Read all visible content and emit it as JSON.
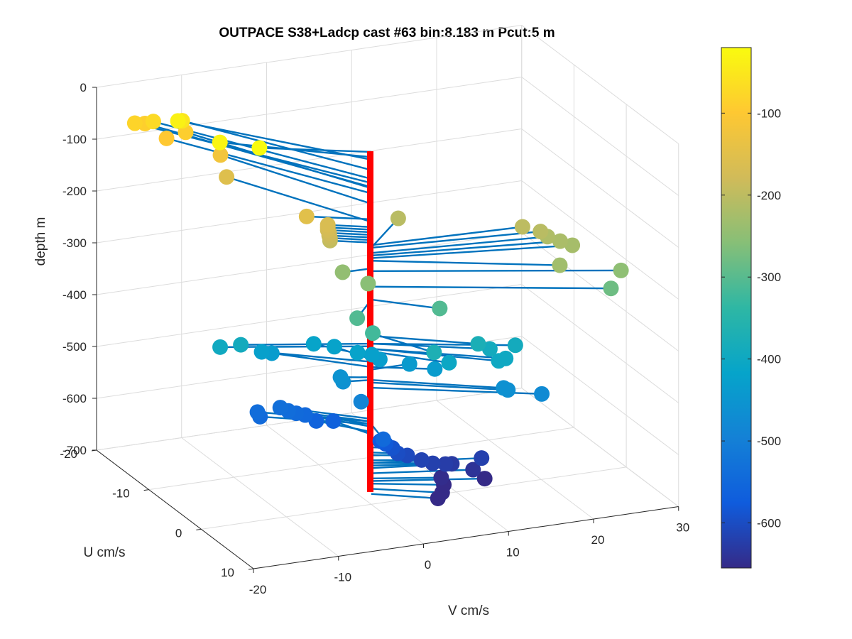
{
  "chart_data": {
    "type": "scatter",
    "subtype": "3d-stem-scatter",
    "title": "OUTPACE S38+Ladcp cast #63 bin:8.183 m  Pcut:5 m",
    "xlabel": "V cm/s",
    "ylabel": "U cm/s",
    "zlabel": "depth m",
    "xlim": [
      -20,
      30
    ],
    "ylim": [
      -20,
      10
    ],
    "zlim": [
      -700,
      0
    ],
    "x_ticks": [
      "-20",
      "-10",
      "0",
      "10",
      "20",
      "30"
    ],
    "y_ticks": [
      "-20",
      "-10",
      "0",
      "10"
    ],
    "z_ticks": [
      "0",
      "-100",
      "-200",
      "-300",
      "-400",
      "-500",
      "-600",
      "-700"
    ],
    "grid": true,
    "colormap": "parula",
    "colorbar": {
      "placement": "right",
      "range": [
        -655,
        -20
      ],
      "ticks": [
        "-100",
        "-200",
        "-300",
        "-400",
        "-500",
        "-600"
      ],
      "colors": [
        "#352a87",
        "#0f5cdd",
        "#1481d6",
        "#06a4ca",
        "#2eb7a4",
        "#87bf77",
        "#d1bb59",
        "#fec832",
        "#f9fb0e"
      ]
    },
    "stem_color": "#0072bd",
    "axis_line_color": "#ff0000",
    "points": [
      {
        "v": -10.5,
        "u": -4.3,
        "depth": -20
      },
      {
        "v": -13.0,
        "u": -7.8,
        "depth": -30
      },
      {
        "v": -14.0,
        "u": -14.2,
        "depth": -35
      },
      {
        "v": -12.2,
        "u": -16.3,
        "depth": -55
      },
      {
        "v": -14.0,
        "u": -18.9,
        "depth": -72
      },
      {
        "v": -15.5,
        "u": -20.0,
        "depth": -80
      },
      {
        "v": -14.0,
        "u": -20.5,
        "depth": -88
      },
      {
        "v": -11.0,
        "u": -17.6,
        "depth": -90
      },
      {
        "v": -13.0,
        "u": -18.0,
        "depth": -100
      },
      {
        "v": -8.5,
        "u": -15.0,
        "depth": -120
      },
      {
        "v": -8.4,
        "u": -14.0,
        "depth": -155
      },
      {
        "v": -6.0,
        "u": -2.6,
        "depth": -150
      },
      {
        "v": -4.0,
        "u": -1.8,
        "depth": -165
      },
      {
        "v": -4.0,
        "u": -1.8,
        "depth": -170
      },
      {
        "v": -4.0,
        "u": -1.8,
        "depth": -175
      },
      {
        "v": -3.9,
        "u": -1.7,
        "depth": -180
      },
      {
        "v": -3.9,
        "u": -1.7,
        "depth": -185
      },
      {
        "v": -3.8,
        "u": -1.7,
        "depth": -190
      },
      {
        "v": -3.8,
        "u": -1.7,
        "depth": -195
      },
      {
        "v": 6.5,
        "u": -5.4,
        "depth": -205
      },
      {
        "v": 17.3,
        "u": 0.8,
        "depth": -200
      },
      {
        "v": 18.8,
        "u": 1.8,
        "depth": -205
      },
      {
        "v": 19.5,
        "u": 2.0,
        "depth": -215
      },
      {
        "v": 20.5,
        "u": 2.8,
        "depth": -220
      },
      {
        "v": 21.5,
        "u": 3.5,
        "depth": -225
      },
      {
        "v": 18.0,
        "u": 6.8,
        "depth": -230
      },
      {
        "v": 24.7,
        "u": 7.6,
        "depth": -250
      },
      {
        "v": 23.4,
        "u": 7.8,
        "depth": -280
      },
      {
        "v": -3.3,
        "u": -0.1,
        "depth": -245
      },
      {
        "v": -1.6,
        "u": 2.0,
        "depth": -255
      },
      {
        "v": 5.6,
        "u": 4.0,
        "depth": -305
      },
      {
        "v": -3.8,
        "u": 3.5,
        "depth": -305
      },
      {
        "v": -3.2,
        "u": 5.5,
        "depth": -320
      },
      {
        "v": 3.7,
        "u": 6.0,
        "depth": -370
      },
      {
        "v": 9.5,
        "u": 5.0,
        "depth": -375
      },
      {
        "v": 11.0,
        "u": 4.8,
        "depth": -390
      },
      {
        "v": 11.0,
        "u": 6.5,
        "depth": -400
      },
      {
        "v": 12.0,
        "u": 6.2,
        "depth": -400
      },
      {
        "v": 14.0,
        "u": 4.8,
        "depth": -390
      },
      {
        "v": 6.2,
        "u": 4.8,
        "depth": -405
      },
      {
        "v": -15.0,
        "u": -4.5,
        "depth": -395
      },
      {
        "v": -13.0,
        "u": -3.8,
        "depth": -390
      },
      {
        "v": -4.0,
        "u": -4.5,
        "depth": -415
      },
      {
        "v": -2.0,
        "u": -3.8,
        "depth": -420
      },
      {
        "v": -0.5,
        "u": -1.8,
        "depth": -420
      },
      {
        "v": 1.0,
        "u": -1.5,
        "depth": -425
      },
      {
        "v": 1.5,
        "u": -0.8,
        "depth": -430
      },
      {
        "v": 4.5,
        "u": 0.0,
        "depth": -440
      },
      {
        "v": 6.0,
        "u": 2.4,
        "depth": -435
      },
      {
        "v": -9.5,
        "u": -5.5,
        "depth": -425
      },
      {
        "v": -8.0,
        "u": -6.0,
        "depth": -435
      },
      {
        "v": -3.0,
        "u": -1.0,
        "depth": -455
      },
      {
        "v": -3.0,
        "u": -0.5,
        "depth": -460
      },
      {
        "v": 12.0,
        "u": 5.8,
        "depth": -460
      },
      {
        "v": 12.5,
        "u": 5.8,
        "depth": -465
      },
      {
        "v": 16.0,
        "u": 6.6,
        "depth": -475
      },
      {
        "v": -1.8,
        "u": 1.0,
        "depth": -490
      },
      {
        "v": -0.8,
        "u": 3.6,
        "depth": -545
      },
      {
        "v": -10.0,
        "u": -5.5,
        "depth": -540
      },
      {
        "v": -10.0,
        "u": -5.0,
        "depth": -545
      },
      {
        "v": -7.5,
        "u": -5.2,
        "depth": -535
      },
      {
        "v": -6.8,
        "u": -4.8,
        "depth": -540
      },
      {
        "v": -6.0,
        "u": -4.6,
        "depth": -545
      },
      {
        "v": -5.0,
        "u": -4.5,
        "depth": -550
      },
      {
        "v": -4.0,
        "u": -4.0,
        "depth": -560
      },
      {
        "v": -2.0,
        "u": -4.0,
        "depth": -565
      },
      {
        "v": 0.7,
        "u": 0.6,
        "depth": -575
      },
      {
        "v": 1.2,
        "u": 0.8,
        "depth": -580
      },
      {
        "v": 2.0,
        "u": 0.8,
        "depth": -590
      },
      {
        "v": 2.5,
        "u": 1.0,
        "depth": -600
      },
      {
        "v": 3.5,
        "u": 1.2,
        "depth": -605
      },
      {
        "v": 5.0,
        "u": 1.5,
        "depth": -615
      },
      {
        "v": 6.0,
        "u": 2.0,
        "depth": -620
      },
      {
        "v": 7.5,
        "u": 2.0,
        "depth": -625
      },
      {
        "v": 8.5,
        "u": 1.6,
        "depth": -630
      },
      {
        "v": 11.5,
        "u": 2.4,
        "depth": -620
      },
      {
        "v": 10.5,
        "u": 2.4,
        "depth": -640
      },
      {
        "v": 11.5,
        "u": 3.0,
        "depth": -655
      },
      {
        "v": 7.0,
        "u": 2.0,
        "depth": -650
      },
      {
        "v": 7.0,
        "u": 2.5,
        "depth": -660
      },
      {
        "v": 6.5,
        "u": 3.0,
        "depth": -670
      },
      {
        "v": 6.0,
        "u": 3.0,
        "depth": -680
      }
    ]
  }
}
